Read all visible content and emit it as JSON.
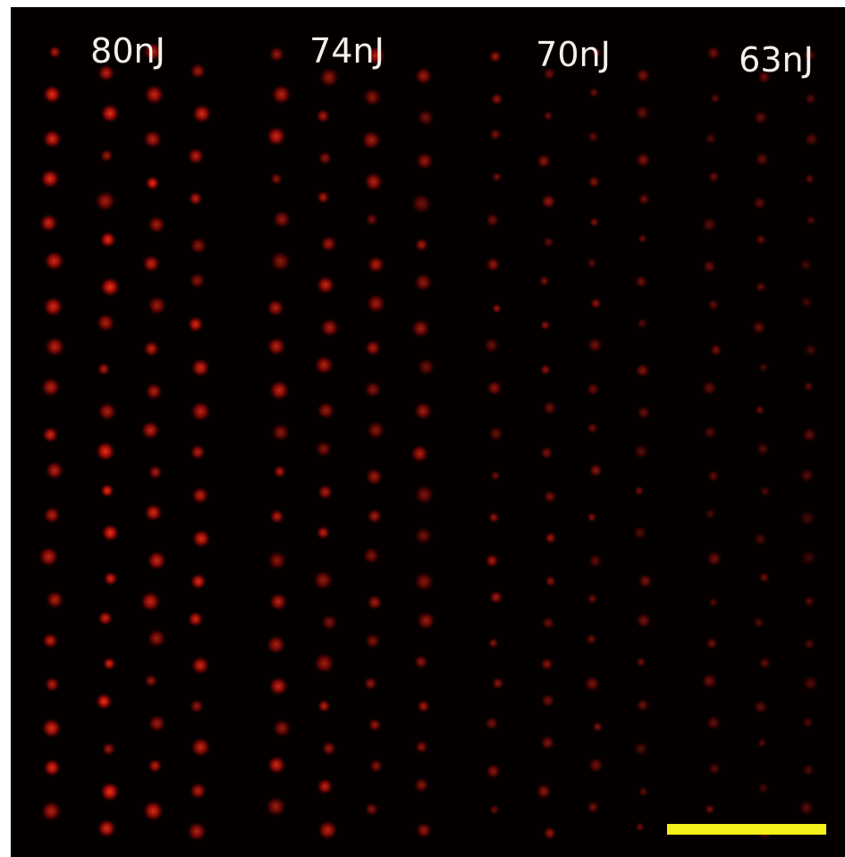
{
  "labels": [
    "80nJ",
    "74nJ",
    "70nJ",
    "63nJ"
  ]
}
